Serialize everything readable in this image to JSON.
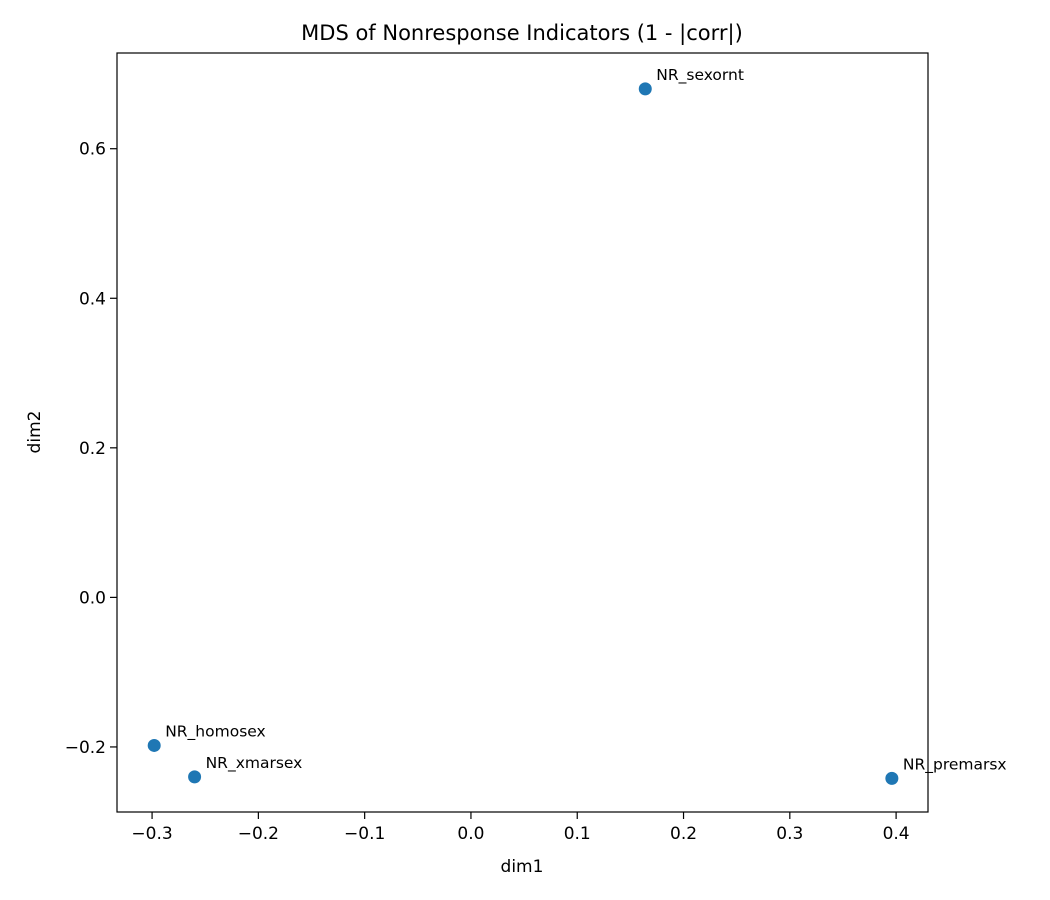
{
  "chart_data": {
    "type": "scatter",
    "title": "MDS of Nonresponse Indicators (1 - |corr|)",
    "xlabel": "dim1",
    "ylabel": "dim2",
    "xlim": [
      -0.333,
      0.43
    ],
    "ylim": [
      -0.287,
      0.728
    ],
    "xticks": [
      -0.3,
      -0.2,
      -0.1,
      0.0,
      0.1,
      0.2,
      0.3,
      0.4
    ],
    "xtick_labels": [
      "−0.3",
      "−0.2",
      "−0.1",
      "0.0",
      "0.1",
      "0.2",
      "0.3",
      "0.4"
    ],
    "yticks": [
      -0.2,
      0.0,
      0.2,
      0.4,
      0.6
    ],
    "ytick_labels": [
      "−0.2",
      "0.0",
      "0.2",
      "0.4",
      "0.6"
    ],
    "grid": false,
    "point_color": "#1f77b4",
    "points": [
      {
        "label": "NR_sexornt",
        "x": 0.164,
        "y": 0.68
      },
      {
        "label": "NR_homosex",
        "x": -0.298,
        "y": -0.198
      },
      {
        "label": "NR_xmarsex",
        "x": -0.26,
        "y": -0.24
      },
      {
        "label": "NR_premarsx",
        "x": 0.396,
        "y": -0.242
      }
    ]
  }
}
